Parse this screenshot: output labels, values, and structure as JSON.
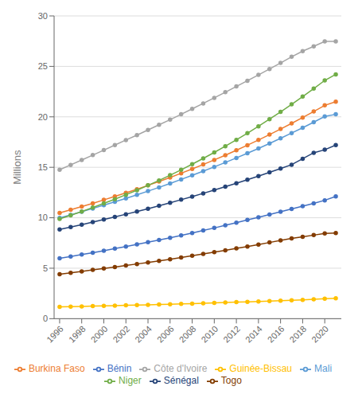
{
  "chart_data": {
    "type": "line",
    "y_label": "Millions",
    "x": [
      1996,
      1997,
      1998,
      1999,
      2000,
      2001,
      2002,
      2003,
      2004,
      2005,
      2006,
      2007,
      2008,
      2009,
      2010,
      2011,
      2012,
      2013,
      2014,
      2015,
      2016,
      2017,
      2018,
      2019,
      2020,
      2021
    ],
    "series": [
      {
        "name": "Bénin",
        "color": "#4472C4",
        "values": [
          5.98,
          6.16,
          6.35,
          6.54,
          6.74,
          6.94,
          7.15,
          7.36,
          7.58,
          7.8,
          8.02,
          8.25,
          8.49,
          8.74,
          8.99,
          9.25,
          9.51,
          9.78,
          10.05,
          10.32,
          10.6,
          10.87,
          11.15,
          11.43,
          11.73,
          12.12
        ]
      },
      {
        "name": "Burkina Faso",
        "color": "#ED7D31",
        "values": [
          10.48,
          10.79,
          11.11,
          11.43,
          11.77,
          12.12,
          12.47,
          12.83,
          13.21,
          13.59,
          13.99,
          14.41,
          14.84,
          15.28,
          15.73,
          16.2,
          16.69,
          17.19,
          17.71,
          18.24,
          18.79,
          19.35,
          19.93,
          20.53,
          21.14,
          21.5
        ]
      },
      {
        "name": "Côte d'Ivoire",
        "color": "#A5A5A5",
        "values": [
          14.76,
          15.24,
          15.72,
          16.21,
          16.7,
          17.2,
          17.7,
          18.19,
          18.7,
          19.21,
          19.72,
          20.25,
          20.79,
          21.33,
          21.88,
          22.44,
          23.01,
          23.58,
          24.16,
          24.74,
          25.34,
          25.95,
          26.51,
          26.98,
          27.48,
          27.48
        ]
      },
      {
        "name": "Guinée-Bissau",
        "color": "#FFC000",
        "values": [
          1.17,
          1.2,
          1.22,
          1.24,
          1.27,
          1.29,
          1.32,
          1.34,
          1.37,
          1.4,
          1.43,
          1.46,
          1.49,
          1.53,
          1.56,
          1.6,
          1.64,
          1.67,
          1.71,
          1.75,
          1.79,
          1.83,
          1.87,
          1.92,
          1.97,
          2.01
        ]
      },
      {
        "name": "Mali",
        "color": "#5B9BD5",
        "values": [
          9.98,
          10.29,
          10.6,
          10.92,
          11.24,
          11.58,
          11.92,
          12.27,
          12.64,
          13.01,
          13.4,
          13.8,
          14.2,
          14.62,
          15.04,
          15.48,
          15.93,
          16.39,
          16.87,
          17.36,
          17.87,
          18.39,
          18.92,
          19.47,
          20.04,
          20.25
        ]
      },
      {
        "name": "Niger",
        "color": "#70AD47",
        "values": [
          9.88,
          10.24,
          10.62,
          11.01,
          11.42,
          11.84,
          12.28,
          12.73,
          13.21,
          13.7,
          14.22,
          14.75,
          15.31,
          15.88,
          16.47,
          17.09,
          17.72,
          18.38,
          19.06,
          19.77,
          20.49,
          21.24,
          22.01,
          22.8,
          23.61,
          24.21
        ]
      },
      {
        "name": "Sénégal",
        "color": "#264478",
        "values": [
          8.84,
          9.07,
          9.32,
          9.57,
          9.82,
          10.08,
          10.35,
          10.62,
          10.9,
          11.19,
          11.49,
          11.79,
          12.1,
          12.42,
          12.74,
          13.08,
          13.42,
          13.77,
          14.13,
          14.5,
          14.88,
          15.26,
          15.85,
          16.44,
          16.74,
          17.2
        ]
      },
      {
        "name": "Togo",
        "color": "#833C00",
        "values": [
          4.41,
          4.55,
          4.69,
          4.83,
          4.97,
          5.12,
          5.27,
          5.42,
          5.57,
          5.73,
          5.89,
          6.06,
          6.24,
          6.41,
          6.59,
          6.77,
          6.96,
          7.15,
          7.35,
          7.55,
          7.75,
          7.95,
          8.12,
          8.28,
          8.44,
          8.48
        ]
      }
    ],
    "marker": "circle",
    "xlim": [
      1995.5,
      2021.5
    ],
    "xticks": [
      1996,
      1998,
      2000,
      2002,
      2004,
      2006,
      2008,
      2010,
      2012,
      2014,
      2016,
      2018,
      2020
    ],
    "ylim": [
      0,
      30
    ],
    "yticks": [
      0,
      5,
      10,
      15,
      20,
      25,
      30
    ],
    "grid": "y",
    "legend": "bottom"
  }
}
